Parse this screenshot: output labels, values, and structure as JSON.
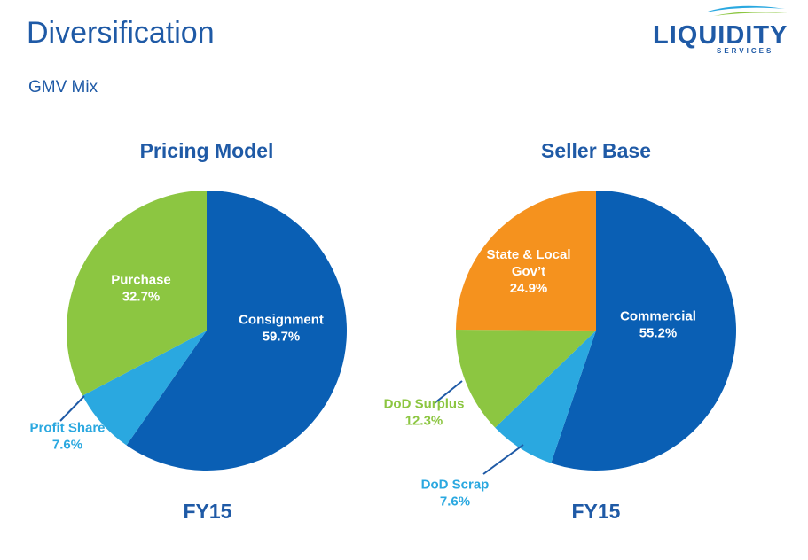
{
  "slide": {
    "title": "Diversification",
    "subtitle": "GMV Mix"
  },
  "logo": {
    "word": "LIQUIDITY",
    "sub": "SERVICES"
  },
  "colors": {
    "dark_blue": "#0a5fb4",
    "light_blue": "#2aa8e0",
    "green": "#8cc641",
    "orange": "#f5921e",
    "title_blue": "#1f5aa6"
  },
  "chart_data": [
    {
      "type": "pie",
      "title": "Pricing Model",
      "footer": "FY15",
      "slices": [
        {
          "name": "Consignment",
          "value": 59.7,
          "label": "59.7%",
          "color": "#0a5fb4"
        },
        {
          "name": "Profit Share",
          "value": 7.6,
          "label": "7.6%",
          "color": "#2aa8e0"
        },
        {
          "name": "Purchase",
          "value": 32.7,
          "label": "32.7%",
          "color": "#8cc641"
        }
      ]
    },
    {
      "type": "pie",
      "title": "Seller Base",
      "footer": "FY15",
      "slices": [
        {
          "name": "Commercial",
          "value": 55.2,
          "label": "55.2%",
          "color": "#0a5fb4"
        },
        {
          "name": "DoD Scrap",
          "value": 7.6,
          "label": "7.6%",
          "color": "#2aa8e0"
        },
        {
          "name": "DoD Surplus",
          "value": 12.3,
          "label": "12.3%",
          "color": "#8cc641"
        },
        {
          "name": "State & Local Gov’t",
          "value": 24.9,
          "label": "24.9%",
          "color": "#f5921e"
        }
      ]
    }
  ]
}
